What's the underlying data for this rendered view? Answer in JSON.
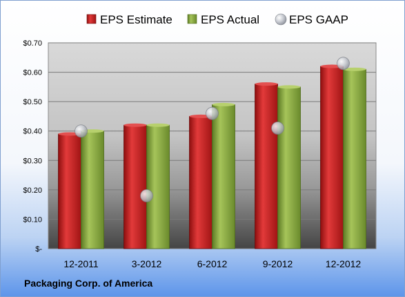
{
  "company": "Packaging Corp. of America",
  "chart_data": {
    "type": "bar",
    "categories": [
      "12-2011",
      "3-2012",
      "6-2012",
      "9-2012",
      "12-2012"
    ],
    "series": [
      {
        "name": "EPS Estimate",
        "kind": "bar",
        "color": "#cc2222",
        "values": [
          0.39,
          0.42,
          0.45,
          0.56,
          0.62
        ]
      },
      {
        "name": "EPS Actual",
        "kind": "bar",
        "color": "#8fae45",
        "values": [
          0.4,
          0.42,
          0.49,
          0.55,
          0.61
        ]
      },
      {
        "name": "EPS GAAP",
        "kind": "scatter",
        "color": "#b8bcc4",
        "values": [
          0.4,
          0.18,
          0.46,
          0.41,
          0.63
        ]
      }
    ],
    "yticks": [
      "$-",
      "$0.10",
      "$0.20",
      "$0.30",
      "$0.40",
      "$0.50",
      "$0.60",
      "$0.70"
    ],
    "ylim": [
      0,
      0.7
    ],
    "grid": true,
    "legend_position": "top"
  }
}
